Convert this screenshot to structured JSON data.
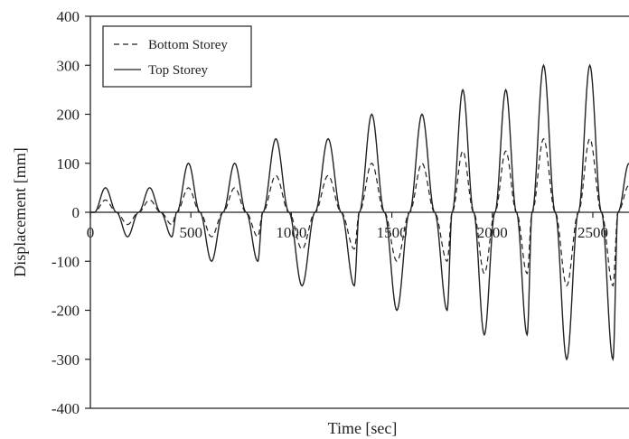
{
  "chart_data": {
    "type": "line",
    "xlabel": "Time [sec]",
    "ylabel": "Displacement [mm]",
    "xlim": [
      0,
      2680
    ],
    "ylim": [
      -400,
      400
    ],
    "x_ticks": [
      0,
      500,
      1000,
      1500,
      2000,
      2500
    ],
    "y_ticks": [
      400,
      300,
      200,
      100,
      0,
      -100,
      -200,
      -300,
      -400
    ],
    "grid": false,
    "legend_position": "top-left",
    "series": [
      {
        "name": "Bottom Storey",
        "line_style": "dashed",
        "color": "#222222",
        "x": [
          0,
          20,
          75,
          130,
          185,
          240,
          295,
          350,
          405,
          430,
          488,
          545,
          603,
          660,
          718,
          775,
          833,
          858,
          923,
          988,
          1053,
          1118,
          1183,
          1248,
          1313,
          1338,
          1400,
          1463,
          1525,
          1588,
          1650,
          1713,
          1775,
          1800,
          1853,
          1907,
          1960,
          2013,
          2067,
          2120,
          2173,
          2198,
          2255,
          2313,
          2370,
          2428,
          2485,
          2543,
          2600,
          2625,
          2680
        ],
        "y": [
          0,
          0,
          25,
          0,
          -25,
          0,
          25,
          0,
          -25,
          0,
          50,
          0,
          -50,
          0,
          50,
          0,
          -50,
          0,
          75,
          0,
          -75,
          0,
          75,
          0,
          -75,
          0,
          100,
          0,
          -100,
          0,
          100,
          0,
          -100,
          0,
          125,
          0,
          -125,
          0,
          125,
          0,
          -125,
          0,
          150,
          0,
          -150,
          0,
          150,
          0,
          -150,
          0,
          55
        ]
      },
      {
        "name": "Top Storey",
        "line_style": "solid",
        "color": "#222222",
        "x": [
          0,
          20,
          75,
          130,
          185,
          240,
          295,
          350,
          405,
          430,
          488,
          545,
          603,
          660,
          718,
          775,
          833,
          858,
          923,
          988,
          1053,
          1118,
          1183,
          1248,
          1313,
          1338,
          1400,
          1463,
          1525,
          1588,
          1650,
          1713,
          1775,
          1800,
          1853,
          1907,
          1960,
          2013,
          2067,
          2120,
          2173,
          2198,
          2255,
          2313,
          2370,
          2428,
          2485,
          2543,
          2600,
          2625,
          2680
        ],
        "y": [
          0,
          0,
          50,
          0,
          -50,
          0,
          50,
          0,
          -50,
          0,
          100,
          0,
          -100,
          0,
          100,
          0,
          -100,
          0,
          150,
          0,
          -150,
          0,
          150,
          0,
          -150,
          0,
          200,
          0,
          -200,
          0,
          200,
          0,
          -200,
          0,
          250,
          0,
          -250,
          0,
          250,
          0,
          -250,
          0,
          300,
          0,
          -300,
          0,
          300,
          0,
          -300,
          0,
          100
        ]
      }
    ]
  }
}
